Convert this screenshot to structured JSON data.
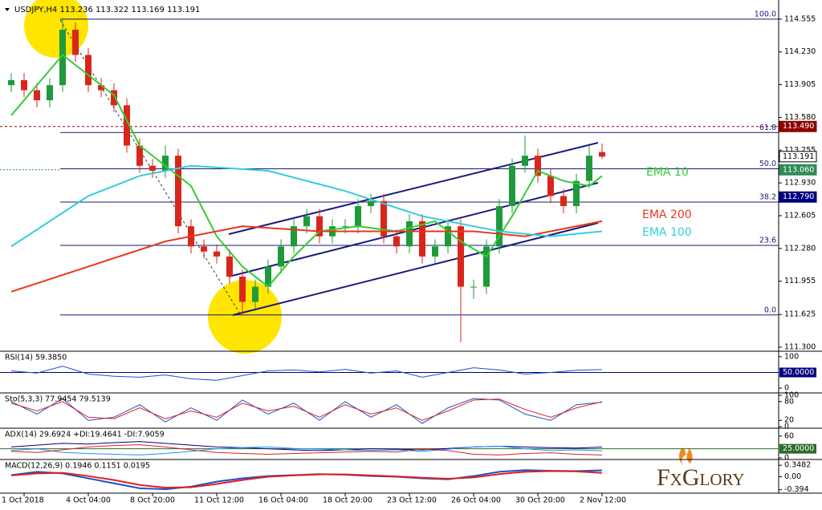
{
  "chart_data": {
    "type": "candlestick",
    "title": "USDJPY,H4  113.236 113.322 113.169 113.191",
    "categories": [
      null,
      "1 Oct 2018",
      null,
      null,
      null,
      null,
      "4 Oct 04:00",
      null,
      null,
      null,
      null,
      "8 Oct 20:00",
      null,
      null,
      null,
      null,
      "11 Oct 12:00",
      null,
      null,
      null,
      null,
      "16 Oct 04:00",
      null,
      null,
      null,
      null,
      "18 Oct 20:00",
      null,
      null,
      null,
      null,
      "23 Oct 12:00",
      null,
      null,
      null,
      null,
      "26 Oct 04:00",
      null,
      null,
      null,
      null,
      "30 Oct 20:00",
      null,
      null,
      null,
      null,
      "2 Nov 12:00"
    ],
    "open": [
      113.9,
      113.95,
      113.85,
      113.75,
      113.9,
      114.45,
      114.2,
      113.9,
      113.85,
      113.7,
      113.3,
      113.1,
      113.05,
      113.2,
      112.5,
      112.3,
      112.25,
      112.2,
      112.0,
      111.75,
      111.9,
      112.1,
      112.3,
      112.5,
      112.6,
      112.4,
      112.5,
      112.5,
      112.7,
      112.75,
      112.4,
      112.3,
      112.55,
      112.2,
      112.3,
      112.5,
      111.9,
      111.9,
      112.3,
      112.7,
      113.1,
      113.2,
      113.0,
      112.8,
      112.7,
      112.95,
      113.236
    ],
    "high": [
      114.02,
      114.02,
      113.92,
      113.97,
      114.55,
      114.52,
      114.27,
      113.97,
      113.92,
      113.77,
      113.37,
      113.17,
      113.3,
      113.27,
      112.57,
      112.37,
      112.32,
      112.27,
      112.07,
      111.97,
      112.17,
      112.37,
      112.57,
      112.67,
      112.67,
      112.57,
      112.57,
      112.77,
      112.82,
      112.82,
      112.47,
      112.62,
      112.62,
      112.37,
      112.57,
      112.57,
      111.97,
      112.37,
      112.77,
      113.17,
      113.4,
      113.27,
      113.07,
      112.87,
      113.02,
      113.3,
      113.322
    ],
    "low": [
      113.83,
      113.78,
      113.68,
      113.68,
      113.83,
      114.13,
      113.83,
      113.78,
      113.63,
      113.23,
      113.03,
      112.98,
      112.98,
      112.43,
      112.23,
      112.18,
      112.13,
      111.93,
      111.62,
      111.68,
      111.83,
      112.03,
      112.23,
      112.43,
      112.33,
      112.33,
      112.43,
      112.43,
      112.63,
      112.33,
      112.23,
      112.23,
      112.13,
      112.13,
      112.23,
      111.35,
      111.78,
      111.83,
      112.23,
      112.63,
      113.03,
      112.93,
      112.73,
      112.63,
      112.63,
      112.88,
      113.169
    ],
    "close": [
      113.95,
      113.85,
      113.75,
      113.9,
      114.45,
      114.2,
      113.9,
      113.85,
      113.7,
      113.3,
      113.1,
      113.05,
      113.2,
      112.5,
      112.3,
      112.25,
      112.2,
      112.0,
      111.75,
      111.9,
      112.1,
      112.3,
      112.5,
      112.6,
      112.4,
      112.5,
      112.5,
      112.7,
      112.75,
      112.4,
      112.3,
      112.55,
      112.2,
      112.3,
      112.5,
      111.9,
      111.9,
      112.3,
      112.7,
      113.1,
      113.2,
      113.0,
      112.8,
      112.7,
      112.95,
      113.2,
      113.191
    ],
    "up_color": "#1f9a3a",
    "down_color": "#d9261c",
    "ylim": [
      111.26,
      114.745
    ],
    "yticks": [
      114.555,
      {
        "value": 114.23,
        "label": "114.230"
      },
      113.905,
      {
        "value": 113.58,
        "label": "113.580"
      },
      113.255,
      {
        "value": 112.93,
        "label": "112.930"
      },
      112.605,
      {
        "value": 112.28,
        "label": "112.280"
      },
      111.955,
      111.625,
      {
        "value": 111.3,
        "label": "111.300"
      }
    ],
    "overlays": [
      {
        "name": "EMA 10",
        "color": "#33cc33",
        "x": [
          0,
          4,
          8,
          10,
          12,
          14,
          16,
          18,
          20,
          22,
          24,
          27,
          30,
          33,
          35,
          37,
          39,
          41,
          43,
          45,
          46
        ],
        "values": [
          113.6,
          114.2,
          113.8,
          113.3,
          113.1,
          112.9,
          112.4,
          112.1,
          111.9,
          112.2,
          112.45,
          112.5,
          112.45,
          112.55,
          112.35,
          112.2,
          112.6,
          113.05,
          112.95,
          112.9,
          113.0
        ]
      },
      {
        "name": "EMA 200",
        "color": "#e8361e",
        "x": [
          0,
          6,
          12,
          18,
          24,
          30,
          36,
          40,
          46
        ],
        "values": [
          111.85,
          112.1,
          112.35,
          112.5,
          112.45,
          112.45,
          112.45,
          112.4,
          112.55
        ]
      },
      {
        "name": "EMA 100",
        "color": "#33ccdd",
        "x": [
          0,
          6,
          10,
          14,
          20,
          26,
          32,
          38,
          42,
          46
        ],
        "values": [
          112.3,
          112.8,
          113.0,
          113.1,
          113.05,
          112.85,
          112.6,
          112.45,
          112.4,
          112.45
        ]
      }
    ],
    "fib_levels": [
      {
        "value": 114.555,
        "label": "100.0"
      },
      {
        "value": 113.43,
        "label": "61.8"
      },
      {
        "value": 113.07,
        "label": "50.0"
      },
      {
        "value": 112.74,
        "label": "38.2"
      },
      {
        "value": 112.31,
        "label": "23.6"
      },
      {
        "value": 111.62,
        "label": "0.0"
      }
    ],
    "price_markers": [
      {
        "value": 113.49,
        "label": "113.490",
        "color": "#8b0000"
      },
      {
        "value": 113.191,
        "label": "113.191",
        "color": "#ffffff"
      },
      {
        "value": 113.06,
        "label": "113.060",
        "color": "#2e8b57"
      },
      {
        "value": 112.79,
        "label": "112.790",
        "color": "#000080"
      }
    ],
    "panels": [
      {
        "title": "RSI(14) 59.3850",
        "ylim": [
          -10,
          110
        ],
        "yticks": [
          100,
          0
        ],
        "level": {
          "value": 50,
          "label": "50.0000",
          "color": "#000080"
        },
        "x": [
          0,
          2,
          4,
          6,
          8,
          10,
          12,
          14,
          16,
          18,
          20,
          22,
          24,
          26,
          28,
          30,
          32,
          34,
          36,
          38,
          40,
          42,
          44,
          46
        ],
        "series": [
          {
            "color": "#1e50c8",
            "values": [
              55,
              48,
              70,
              45,
              38,
              35,
              42,
              30,
              25,
              40,
              55,
              58,
              52,
              60,
              48,
              55,
              35,
              50,
              65,
              58,
              45,
              50,
              57,
              59.385
            ]
          }
        ]
      },
      {
        "title": "Sto(5,3,3) 77.9454 79.5139",
        "ylim": [
          0,
          100
        ],
        "yticks": [
          100,
          80,
          20,
          0
        ],
        "x": [
          0,
          2,
          4,
          6,
          8,
          10,
          12,
          14,
          16,
          18,
          20,
          22,
          24,
          26,
          28,
          30,
          32,
          34,
          36,
          38,
          40,
          42,
          44,
          46
        ],
        "series": [
          {
            "color": "#1e50c8",
            "values": [
              80,
              40,
              90,
              20,
              30,
              70,
              15,
              60,
              20,
              85,
              40,
              75,
              20,
              80,
              30,
              70,
              10,
              60,
              90,
              85,
              40,
              20,
              70,
              77.9454
            ]
          },
          {
            "color": "#e02020",
            "values": [
              75,
              50,
              80,
              30,
              25,
              60,
              25,
              50,
              30,
              75,
              50,
              65,
              30,
              70,
              40,
              60,
              20,
              50,
              85,
              88,
              55,
              30,
              60,
              79.5139
            ]
          }
        ]
      },
      {
        "title": "ADX(14) 29.6924 +DI:19.4641 -DI:7.9059",
        "ylim": [
          0,
          75
        ],
        "yticks": [
          60,
          0
        ],
        "level": {
          "value": 25,
          "label": "25.0000",
          "color": "#2e6b2e"
        },
        "x": [
          0,
          2,
          4,
          6,
          8,
          10,
          12,
          14,
          16,
          18,
          20,
          22,
          24,
          26,
          28,
          30,
          32,
          34,
          36,
          38,
          40,
          42,
          44,
          46
        ],
        "series": [
          {
            "color": "#000080",
            "values": [
              30,
              35,
              40,
              38,
              42,
              45,
              40,
              35,
              30,
              28,
              25,
              22,
              20,
              22,
              25,
              24,
              22,
              26,
              30,
              32,
              30,
              28,
              27,
              29.6924
            ]
          },
          {
            "color": "#1e90ff",
            "values": [
              20,
              25,
              15,
              12,
              10,
              8,
              12,
              18,
              25,
              28,
              30,
              26,
              24,
              22,
              20,
              22,
              18,
              24,
              30,
              32,
              25,
              20,
              22,
              19.4641
            ]
          },
          {
            "color": "#e02020",
            "values": [
              18,
              15,
              22,
              30,
              34,
              36,
              30,
              22,
              15,
              12,
              10,
              12,
              14,
              16,
              18,
              16,
              24,
              20,
              10,
              8,
              12,
              14,
              10,
              7.9059
            ]
          }
        ]
      },
      {
        "title": "MACD(12,26,9) 0.1946 0.1151 0.0195",
        "ylim": [
          -0.45,
          0.45
        ],
        "yticks": [
          0.3482,
          {
            "value": 0,
            "label": "0.00"
          },
          -0.394
        ],
        "x": [
          0,
          2,
          4,
          6,
          8,
          10,
          12,
          14,
          16,
          18,
          20,
          22,
          24,
          26,
          28,
          30,
          32,
          34,
          36,
          38,
          40,
          42,
          44,
          46
        ],
        "series": [
          {
            "color": "#1e50c8",
            "values": [
              0.05,
              0.15,
              0.1,
              -0.05,
              -0.2,
              -0.35,
              -0.38,
              -0.3,
              -0.15,
              -0.05,
              0.02,
              0.05,
              0.08,
              0.06,
              0.02,
              0.0,
              -0.05,
              -0.08,
              0.02,
              0.15,
              0.2,
              0.18,
              0.17,
              0.1946
            ]
          },
          {
            "color": "#e02020",
            "values": [
              0.04,
              0.1,
              0.12,
              0.02,
              -0.1,
              -0.25,
              -0.33,
              -0.32,
              -0.22,
              -0.1,
              0.0,
              0.04,
              0.07,
              0.07,
              0.04,
              0.01,
              -0.03,
              -0.06,
              -0.02,
              0.08,
              0.15,
              0.17,
              0.16,
              0.1151
            ]
          }
        ]
      }
    ],
    "logo": "FxGlory"
  }
}
